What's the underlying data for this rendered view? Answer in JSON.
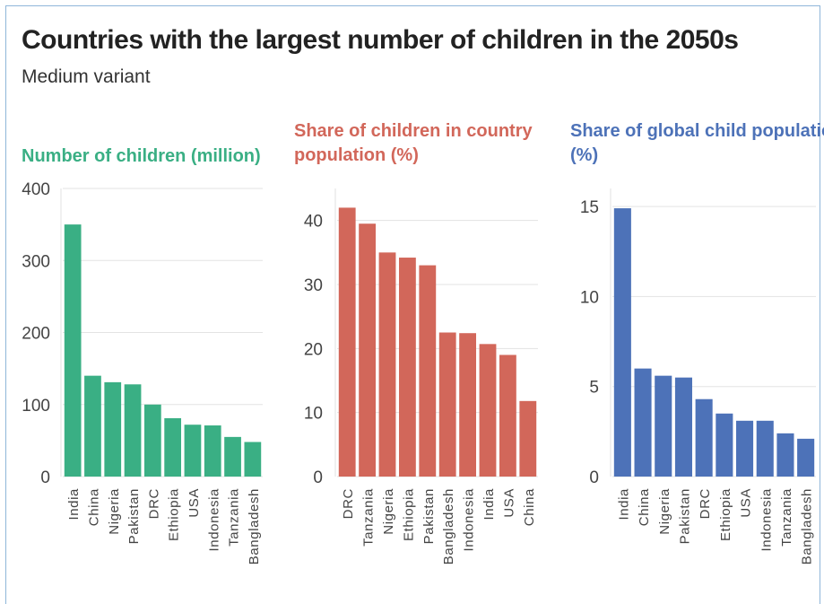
{
  "title": "Countries with the largest number of children in the 2050s",
  "subtitle": "Medium variant",
  "chart_data": [
    {
      "type": "bar",
      "title": "Number of children (million)",
      "color": "#3aaf84",
      "categories": [
        "India",
        "China",
        "Nigeria",
        "Pakistan",
        "DRC",
        "Ethiopia",
        "USA",
        "Indonesia",
        "Tanzania",
        "Bangladesh"
      ],
      "values": [
        350,
        140,
        131,
        128,
        100,
        81,
        72,
        71,
        55,
        48
      ],
      "ylim": [
        0,
        400
      ],
      "yticks": [
        0,
        100,
        200,
        300,
        400
      ],
      "grid": true
    },
    {
      "type": "bar",
      "title": "Share of children in country population (%)",
      "color": "#d2675a",
      "categories": [
        "DRC",
        "Tanzania",
        "Nigeria",
        "Ethiopia",
        "Pakistan",
        "Bangladesh",
        "Indonesia",
        "India",
        "USA",
        "China"
      ],
      "values": [
        42,
        39.5,
        35,
        34.2,
        33,
        22.5,
        22.4,
        20.7,
        19,
        11.8
      ],
      "ylim": [
        0,
        45
      ],
      "yticks": [
        0,
        10,
        20,
        30,
        40
      ],
      "grid": true
    },
    {
      "type": "bar",
      "title": "Share of global child population (%)",
      "color": "#4d72b8",
      "categories": [
        "India",
        "China",
        "Nigeria",
        "Pakistan",
        "DRC",
        "Ethiopia",
        "USA",
        "Indonesia",
        "Tanzania",
        "Bangladesh"
      ],
      "values": [
        14.9,
        6,
        5.6,
        5.5,
        4.3,
        3.5,
        3.1,
        3.1,
        2.4,
        2.1
      ],
      "ylim": [
        0,
        16
      ],
      "yticks": [
        0,
        5,
        10,
        15
      ],
      "grid": true
    }
  ]
}
